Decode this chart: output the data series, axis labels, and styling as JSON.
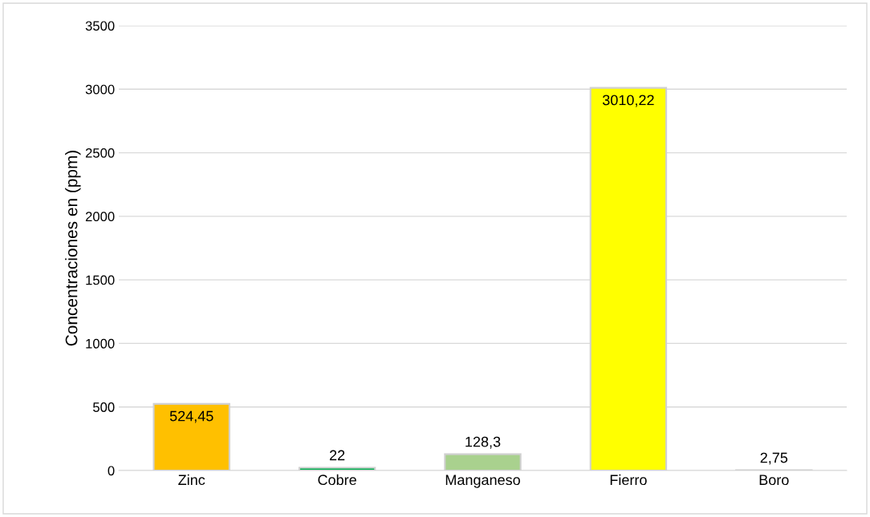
{
  "chart_data": {
    "type": "bar",
    "ylabel": "Concentraciones en (ppm)",
    "categories": [
      "Zinc",
      "Cobre",
      "Manganeso",
      "Fierro",
      "Boro"
    ],
    "values": [
      524.45,
      22,
      128.3,
      3010.22,
      2.75
    ],
    "value_labels": [
      "524,45",
      "22",
      "128,3",
      "3010,22",
      "2,75"
    ],
    "colors": [
      "#ffc000",
      "#00b050",
      "#a9d18e",
      "#ffff00",
      "#f2f2f2"
    ],
    "ylim": [
      0,
      3500
    ],
    "yticks": [
      0,
      500,
      1000,
      1500,
      2000,
      2500,
      3000,
      3500
    ],
    "grid": "y",
    "legend": false
  }
}
